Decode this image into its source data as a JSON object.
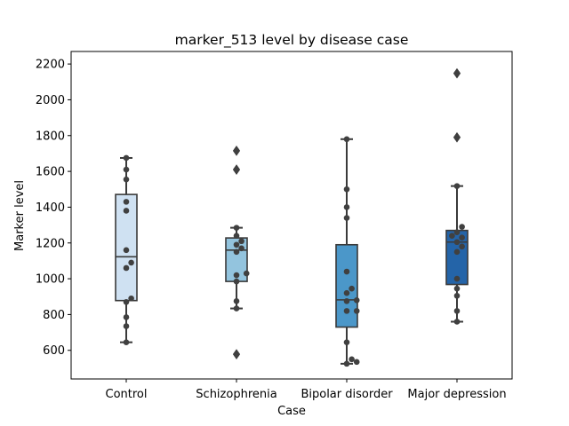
{
  "chart_data": {
    "type": "box",
    "title": "marker_513 level by disease case",
    "xlabel": "Case",
    "ylabel": "Marker level",
    "ylim": [
      440,
      2270
    ],
    "yticks": [
      600,
      800,
      1000,
      1200,
      1400,
      1600,
      1800,
      2000,
      2200
    ],
    "grid": false,
    "legend": "none",
    "categories": [
      "Control",
      "Schizophrenia",
      "Bipolar disorder",
      "Major depression"
    ],
    "colors": [
      "#cfe1f2",
      "#93c4de",
      "#4b97c9",
      "#2464a8"
    ],
    "boxes": [
      {
        "category": "Control",
        "whisker_low": 645,
        "q1": 878,
        "median": 1123,
        "q3": 1471,
        "whisker_high": 1675,
        "outliers": []
      },
      {
        "category": "Schizophrenia",
        "whisker_low": 834,
        "q1": 985,
        "median": 1160,
        "q3": 1228,
        "whisker_high": 1285,
        "outliers": [
          578,
          1610,
          1715
        ]
      },
      {
        "category": "Bipolar disorder",
        "whisker_low": 525,
        "q1": 730,
        "median": 882,
        "q3": 1190,
        "whisker_high": 1780,
        "outliers": []
      },
      {
        "category": "Major depression",
        "whisker_low": 760,
        "q1": 968,
        "median": 1205,
        "q3": 1270,
        "whisker_high": 1518,
        "outliers": [
          1790,
          2148
        ]
      }
    ],
    "points": [
      {
        "category": "Control",
        "values": [
          645,
          735,
          785,
          870,
          890,
          1060,
          1090,
          1160,
          1380,
          1430,
          1555,
          1610,
          1675
        ]
      },
      {
        "category": "Schizophrenia",
        "values": [
          578,
          834,
          875,
          985,
          1020,
          1030,
          1150,
          1170,
          1190,
          1210,
          1240,
          1285,
          1610,
          1715
        ]
      },
      {
        "category": "Bipolar disorder",
        "values": [
          525,
          535,
          550,
          645,
          820,
          820,
          875,
          880,
          920,
          945,
          1040,
          1340,
          1400,
          1500,
          1780
        ]
      },
      {
        "category": "Major depression",
        "values": [
          760,
          820,
          905,
          945,
          1000,
          1150,
          1180,
          1205,
          1230,
          1240,
          1260,
          1290,
          1518,
          1790,
          2148
        ]
      }
    ]
  }
}
